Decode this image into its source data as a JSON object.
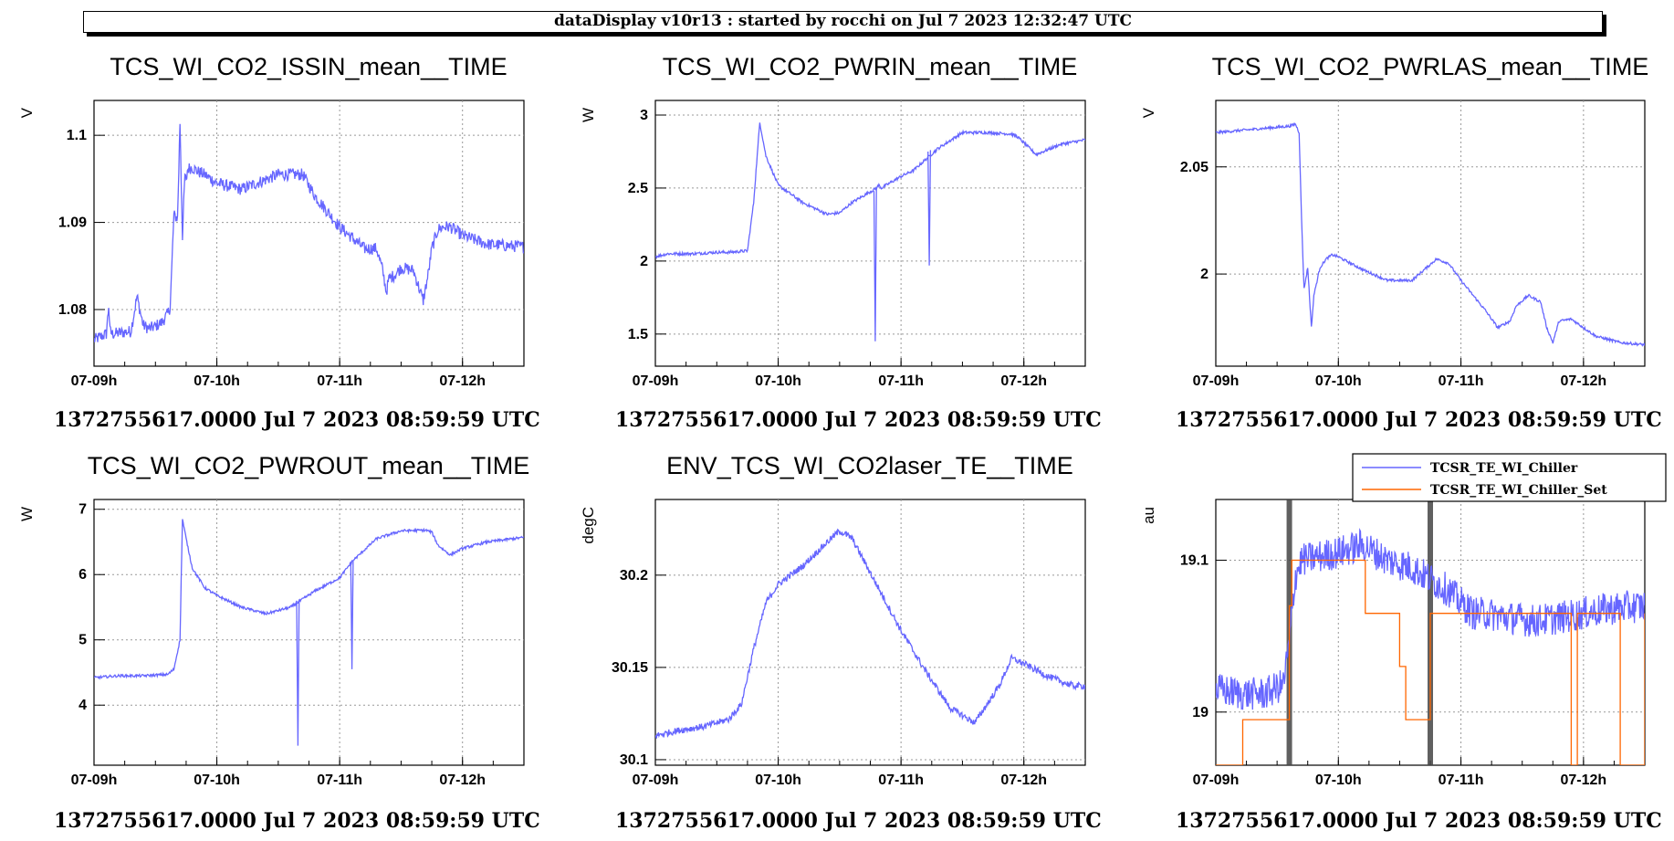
{
  "header": {
    "title": "dataDisplay v10r13 : started by rocchi on Jul  7 2023 12:32:47 UTC"
  },
  "colors": {
    "series": "#6666ff",
    "setpoint": "#ff6600",
    "grid": "#999999",
    "marker": "#333333"
  },
  "chart_data": [
    {
      "type": "line",
      "title": "TCS_WI_CO2_ISSIN_mean__TIME",
      "ylabel": "V",
      "footer": "1372755617.0000 Jul 7 2023 08:59:59 UTC",
      "xticks": [
        "07-09h",
        "07-10h",
        "07-11h",
        "07-12h"
      ],
      "xlim": [
        0,
        3.5
      ],
      "ylim": [
        1.0735,
        1.104
      ],
      "yticks": [
        {
          "v": 1.08,
          "label": "1.08"
        },
        {
          "v": 1.09,
          "label": "1.09"
        },
        {
          "v": 1.1,
          "label": "1.1"
        }
      ],
      "series": [
        {
          "color": "#6666ff",
          "noise": 0.0007,
          "x": [
            0.0,
            0.1,
            0.12,
            0.13,
            0.15,
            0.2,
            0.3,
            0.35,
            0.38,
            0.4,
            0.45,
            0.5,
            0.55,
            0.6,
            0.62,
            0.65,
            0.68,
            0.7,
            0.72,
            0.74,
            0.75,
            0.76,
            0.77,
            0.8,
            0.85,
            0.9,
            1.0,
            1.2,
            1.5,
            1.7,
            1.8,
            2.0,
            2.2,
            2.3,
            2.35,
            2.38,
            2.4,
            2.45,
            2.5,
            2.6,
            2.68,
            2.72,
            2.75,
            2.8,
            2.85,
            2.9,
            3.0,
            3.2,
            3.5
          ],
          "y": [
            1.0765,
            1.0772,
            1.0805,
            1.0775,
            1.0772,
            1.0773,
            1.0775,
            1.0815,
            1.0795,
            1.0782,
            1.0778,
            1.0781,
            1.0785,
            1.0795,
            1.0803,
            1.0908,
            1.0905,
            1.1015,
            1.0885,
            1.0955,
            1.0945,
            1.096,
            1.0962,
            1.0963,
            1.0958,
            1.0955,
            1.0945,
            1.0938,
            1.0955,
            1.0955,
            1.093,
            1.0895,
            1.087,
            1.087,
            1.0845,
            1.082,
            1.0835,
            1.084,
            1.0848,
            1.0845,
            1.081,
            1.084,
            1.087,
            1.0892,
            1.0895,
            1.0895,
            1.0885,
            1.0875,
            1.0872
          ]
        }
      ]
    },
    {
      "type": "line",
      "title": "TCS_WI_CO2_PWRIN_mean__TIME",
      "ylabel": "W",
      "footer": "1372755617.0000 Jul 7 2023 08:59:59 UTC",
      "xticks": [
        "07-09h",
        "07-10h",
        "07-11h",
        "07-12h"
      ],
      "xlim": [
        0,
        3.5
      ],
      "ylim": [
        1.28,
        3.1
      ],
      "yticks": [
        {
          "v": 1.5,
          "label": "1.5"
        },
        {
          "v": 2,
          "label": "2"
        },
        {
          "v": 2.5,
          "label": "2.5"
        },
        {
          "v": 3,
          "label": "3"
        }
      ],
      "series": [
        {
          "color": "#6666ff",
          "noise": 0.01,
          "x": [
            0.0,
            0.1,
            0.3,
            0.5,
            0.6,
            0.75,
            0.8,
            0.85,
            0.9,
            1.0,
            1.2,
            1.4,
            1.5,
            1.6,
            1.8,
            1.82,
            1.84,
            2.0,
            2.1,
            2.3,
            2.5,
            2.7,
            2.9,
            2.95,
            3.1,
            3.3,
            3.5
          ],
          "y": [
            2.03,
            2.05,
            2.05,
            2.06,
            2.06,
            2.07,
            2.4,
            2.95,
            2.72,
            2.52,
            2.4,
            2.32,
            2.33,
            2.4,
            2.5,
            2.52,
            2.5,
            2.58,
            2.62,
            2.77,
            2.88,
            2.88,
            2.87,
            2.85,
            2.73,
            2.8,
            2.83
          ]
        },
        {
          "color": "#6666ff",
          "noise": 0,
          "x": [
            1.78,
            1.79,
            1.8
          ],
          "y": [
            2.48,
            1.45,
            2.49
          ]
        },
        {
          "color": "#6666ff",
          "noise": 0,
          "x": [
            2.22,
            2.23,
            2.24
          ],
          "y": [
            2.75,
            1.97,
            2.76
          ]
        }
      ]
    },
    {
      "type": "line",
      "title": "TCS_WI_CO2_PWRLAS_mean__TIME",
      "ylabel": "V",
      "footer": "1372755617.0000 Jul 7 2023 08:59:59 UTC",
      "xticks": [
        "07-09h",
        "07-10h",
        "07-11h",
        "07-12h"
      ],
      "xlim": [
        0,
        3.5
      ],
      "ylim": [
        1.957,
        2.081
      ],
      "yticks": [
        {
          "v": 2,
          "label": "2"
        },
        {
          "v": 2.05,
          "label": "2.05"
        }
      ],
      "series": [
        {
          "color": "#6666ff",
          "noise": 0.0006,
          "x": [
            0.0,
            0.2,
            0.4,
            0.6,
            0.65,
            0.68,
            0.7,
            0.72,
            0.75,
            0.78,
            0.8,
            0.85,
            0.9,
            0.95,
            1.0,
            1.2,
            1.4,
            1.6,
            1.8,
            1.9,
            2.0,
            2.1,
            2.2,
            2.3,
            2.4,
            2.45,
            2.55,
            2.65,
            2.7,
            2.75,
            2.8,
            2.9,
            3.0,
            3.1,
            3.3,
            3.5
          ],
          "y": [
            2.066,
            2.067,
            2.068,
            2.069,
            2.07,
            2.066,
            2.025,
            1.993,
            2.003,
            1.975,
            1.99,
            2.003,
            2.007,
            2.009,
            2.008,
            2.002,
            1.997,
            1.997,
            2.007,
            2.005,
            1.997,
            1.99,
            1.983,
            1.975,
            1.978,
            1.985,
            1.99,
            1.987,
            1.975,
            1.968,
            1.978,
            1.979,
            1.975,
            1.971,
            1.968,
            1.967
          ]
        }
      ]
    },
    {
      "type": "line",
      "title": "TCS_WI_CO2_PWROUT_mean__TIME",
      "ylabel": "W",
      "footer": "1372755617.0000 Jul 7 2023 08:59:59 UTC",
      "xticks": [
        "07-09h",
        "07-10h",
        "07-11h",
        "07-12h"
      ],
      "xlim": [
        0,
        3.5
      ],
      "ylim": [
        3.08,
        7.15
      ],
      "yticks": [
        {
          "v": 4,
          "label": "4"
        },
        {
          "v": 5,
          "label": "5"
        },
        {
          "v": 6,
          "label": "6"
        },
        {
          "v": 7,
          "label": "7"
        }
      ],
      "series": [
        {
          "color": "#6666ff",
          "noise": 0.02,
          "x": [
            0.0,
            0.2,
            0.4,
            0.6,
            0.65,
            0.7,
            0.72,
            0.75,
            0.8,
            0.9,
            1.0,
            1.2,
            1.4,
            1.6,
            1.8,
            2.0,
            2.1,
            2.3,
            2.5,
            2.7,
            2.75,
            2.8,
            2.9,
            3.0,
            3.2,
            3.5
          ],
          "y": [
            4.42,
            4.45,
            4.45,
            4.47,
            4.55,
            5.0,
            6.85,
            6.55,
            6.1,
            5.8,
            5.68,
            5.5,
            5.4,
            5.5,
            5.75,
            5.95,
            6.2,
            6.55,
            6.67,
            6.68,
            6.65,
            6.45,
            6.3,
            6.4,
            6.5,
            6.57
          ]
        },
        {
          "color": "#6666ff",
          "noise": 0,
          "x": [
            1.65,
            1.66,
            1.67
          ],
          "y": [
            5.6,
            3.38,
            5.62
          ]
        },
        {
          "color": "#6666ff",
          "noise": 0,
          "x": [
            2.09,
            2.1,
            2.11
          ],
          "y": [
            6.2,
            4.55,
            6.22
          ]
        }
      ]
    },
    {
      "type": "line",
      "title": "ENV_TCS_WI_CO2laser_TE__TIME",
      "ylabel": "degC",
      "footer": "1372755617.0000 Jul 7 2023 08:59:59 UTC",
      "xticks": [
        "07-09h",
        "07-10h",
        "07-11h",
        "07-12h"
      ],
      "xlim": [
        0,
        3.5
      ],
      "ylim": [
        30.097,
        30.241
      ],
      "yticks": [
        {
          "v": 30.1,
          "label": "30.1"
        },
        {
          "v": 30.15,
          "label": "30.15"
        },
        {
          "v": 30.2,
          "label": "30.2"
        }
      ],
      "series": [
        {
          "color": "#6666ff",
          "noise": 0.0018,
          "x": [
            0.0,
            0.2,
            0.4,
            0.6,
            0.7,
            0.8,
            0.9,
            1.0,
            1.2,
            1.4,
            1.5,
            1.6,
            1.8,
            2.0,
            2.2,
            2.4,
            2.6,
            2.8,
            2.9,
            3.0,
            3.2,
            3.4,
            3.5
          ],
          "y": [
            30.113,
            30.116,
            30.118,
            30.122,
            30.13,
            30.16,
            30.185,
            30.195,
            30.205,
            30.218,
            30.224,
            30.22,
            30.195,
            30.17,
            30.148,
            30.128,
            30.12,
            30.14,
            30.155,
            30.152,
            30.145,
            30.14,
            30.14
          ]
        }
      ]
    },
    {
      "type": "line",
      "title": "",
      "ylabel": "au",
      "footer": "1372755617.0000 Jul 7 2023 08:59:59 UTC",
      "xticks": [
        "07-09h",
        "07-10h",
        "07-11h",
        "07-12h"
      ],
      "xlim": [
        0,
        3.5
      ],
      "ylim": [
        18.965,
        19.14
      ],
      "yticks": [
        {
          "v": 19,
          "label": "19"
        },
        {
          "v": 19.1,
          "label": "19.1"
        }
      ],
      "legend": {
        "position": "top-right",
        "entries": [
          {
            "label": "TCSR_TE_WI_Chiller",
            "color": "#6666ff"
          },
          {
            "label": "TCSR_TE_WI_Chiller_Set",
            "color": "#ff6600"
          }
        ]
      },
      "markers_x": [
        0.6,
        1.75
      ],
      "series": [
        {
          "name": "TCSR_TE_WI_Chiller",
          "color": "#6666ff",
          "noise": 0.011,
          "x": [
            0.0,
            0.2,
            0.4,
            0.55,
            0.6,
            0.62,
            0.65,
            0.7,
            1.0,
            1.2,
            1.4,
            1.6,
            1.8,
            1.9,
            2.0,
            2.1,
            2.2,
            2.4,
            2.6,
            2.8,
            3.0,
            3.2,
            3.5
          ],
          "y": [
            19.015,
            19.012,
            19.012,
            19.018,
            19.045,
            19.065,
            19.09,
            19.1,
            19.105,
            19.11,
            19.1,
            19.095,
            19.085,
            19.08,
            19.072,
            19.065,
            19.065,
            19.062,
            19.06,
            19.062,
            19.065,
            19.068,
            19.07
          ]
        },
        {
          "name": "TCSR_TE_WI_Chiller_Set",
          "color": "#ff6600",
          "noise": 0,
          "step": true,
          "x": [
            0.0,
            0.2,
            0.22,
            0.25,
            0.55,
            0.6,
            0.62,
            1.2,
            1.22,
            1.45,
            1.5,
            1.55,
            1.65,
            1.75,
            1.78,
            2.05,
            2.9,
            2.95,
            3.0,
            3.3,
            3.5
          ],
          "y": [
            18.965,
            18.965,
            18.995,
            18.995,
            18.995,
            19.07,
            19.1,
            19.1,
            19.065,
            19.065,
            19.03,
            18.995,
            18.995,
            19.065,
            19.065,
            19.065,
            18.965,
            19.065,
            19.065,
            18.965,
            19.065
          ]
        }
      ]
    }
  ]
}
